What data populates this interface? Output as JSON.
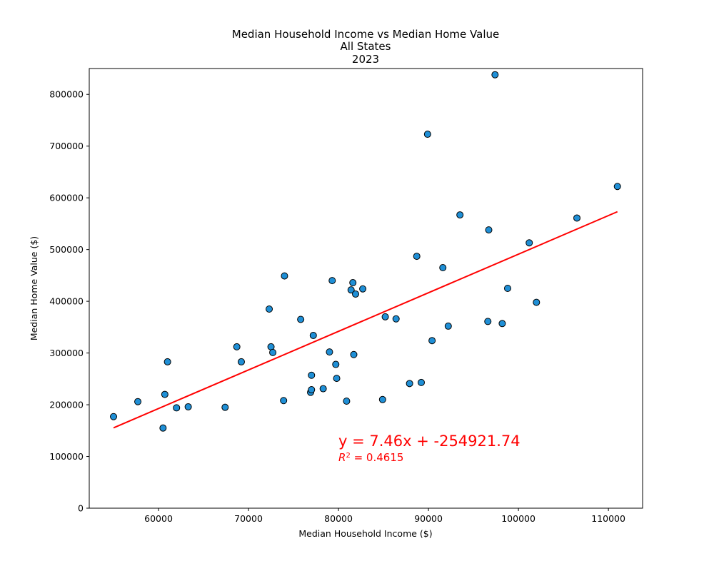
{
  "chart_data": {
    "type": "scatter",
    "title_lines": [
      "Median Household Income vs Median Home Value",
      "All States",
      "2023"
    ],
    "xlabel": "Median Household Income ($)",
    "ylabel": "Median Home Value ($)",
    "xlim": [
      52300,
      113800
    ],
    "ylim": [
      0,
      850000
    ],
    "xticks": [
      60000,
      70000,
      80000,
      90000,
      100000,
      110000
    ],
    "yticks": [
      0,
      100000,
      200000,
      300000,
      400000,
      500000,
      600000,
      700000,
      800000
    ],
    "grid": false,
    "colors": {
      "point_fill": "#1f8fd6",
      "point_edge": "#000000",
      "regression": "#ff0000",
      "annotation": "#ff0000"
    },
    "points": [
      {
        "x": 55000,
        "y": 177000
      },
      {
        "x": 57700,
        "y": 206000
      },
      {
        "x": 60500,
        "y": 155000
      },
      {
        "x": 60700,
        "y": 220000
      },
      {
        "x": 61000,
        "y": 283000
      },
      {
        "x": 62000,
        "y": 194000
      },
      {
        "x": 63300,
        "y": 196000
      },
      {
        "x": 67400,
        "y": 195000
      },
      {
        "x": 68700,
        "y": 312000
      },
      {
        "x": 69200,
        "y": 283000
      },
      {
        "x": 72300,
        "y": 385000
      },
      {
        "x": 72500,
        "y": 312000
      },
      {
        "x": 72700,
        "y": 301000
      },
      {
        "x": 73900,
        "y": 208000
      },
      {
        "x": 74000,
        "y": 449000
      },
      {
        "x": 75800,
        "y": 365000
      },
      {
        "x": 76900,
        "y": 224000
      },
      {
        "x": 77000,
        "y": 229000
      },
      {
        "x": 77000,
        "y": 257000
      },
      {
        "x": 77200,
        "y": 334000
      },
      {
        "x": 78300,
        "y": 231000
      },
      {
        "x": 79000,
        "y": 302000
      },
      {
        "x": 79300,
        "y": 440000
      },
      {
        "x": 79700,
        "y": 278000
      },
      {
        "x": 79800,
        "y": 251000
      },
      {
        "x": 80900,
        "y": 207000
      },
      {
        "x": 81400,
        "y": 422000
      },
      {
        "x": 81600,
        "y": 436000
      },
      {
        "x": 81700,
        "y": 297000
      },
      {
        "x": 81900,
        "y": 414000
      },
      {
        "x": 82700,
        "y": 424000
      },
      {
        "x": 84900,
        "y": 210000
      },
      {
        "x": 85200,
        "y": 370000
      },
      {
        "x": 86400,
        "y": 366000
      },
      {
        "x": 87900,
        "y": 241000
      },
      {
        "x": 88700,
        "y": 487000
      },
      {
        "x": 89200,
        "y": 243000
      },
      {
        "x": 89900,
        "y": 723000
      },
      {
        "x": 90400,
        "y": 324000
      },
      {
        "x": 91600,
        "y": 465000
      },
      {
        "x": 92200,
        "y": 352000
      },
      {
        "x": 93500,
        "y": 567000
      },
      {
        "x": 96600,
        "y": 361000
      },
      {
        "x": 96700,
        "y": 538000
      },
      {
        "x": 97400,
        "y": 838000
      },
      {
        "x": 98200,
        "y": 357000
      },
      {
        "x": 98800,
        "y": 425000
      },
      {
        "x": 101200,
        "y": 513000
      },
      {
        "x": 102000,
        "y": 398000
      },
      {
        "x": 106500,
        "y": 561000
      },
      {
        "x": 111000,
        "y": 622000
      }
    ],
    "regression": {
      "slope": 7.46,
      "intercept": -254921.74,
      "x_range": [
        55000,
        111000
      ]
    },
    "annotation": {
      "equation": "y = 7.46x + -254921.74",
      "r2_label": "R",
      "r2_sup": "2",
      "r2_value": " = 0.4615"
    }
  }
}
